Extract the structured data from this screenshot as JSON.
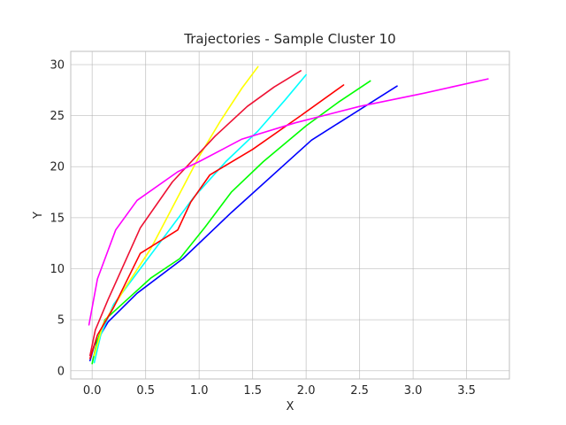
{
  "chart_data": {
    "type": "line",
    "title": "Trajectories - Sample Cluster 10",
    "xlabel": "X",
    "ylabel": "Y",
    "xlim": [
      -0.2,
      3.9
    ],
    "ylim": [
      -0.8,
      31.3
    ],
    "xticks": [
      0.0,
      0.5,
      1.0,
      1.5,
      2.0,
      2.5,
      3.0,
      3.5
    ],
    "xtick_labels": [
      "0.0",
      "0.5",
      "1.0",
      "1.5",
      "2.0",
      "2.5",
      "3.0",
      "3.5"
    ],
    "yticks": [
      0,
      5,
      10,
      15,
      20,
      25,
      30
    ],
    "ytick_labels": [
      "0",
      "5",
      "10",
      "15",
      "20",
      "25",
      "30"
    ],
    "grid": true,
    "legend": false,
    "series": [
      {
        "color": "#0000ff",
        "x": [
          -0.02,
          0.02,
          0.15,
          0.42,
          0.85,
          1.3,
          2.05,
          2.85
        ],
        "y": [
          1.0,
          2.5,
          4.8,
          7.6,
          11.0,
          15.5,
          22.6,
          27.9
        ]
      },
      {
        "color": "#00ff00",
        "x": [
          0.0,
          0.05,
          0.12,
          0.35,
          0.55,
          0.82,
          1.05,
          1.3,
          1.6,
          2.0,
          2.3,
          2.6
        ],
        "y": [
          0.7,
          3.0,
          5.0,
          7.2,
          9.1,
          11.0,
          14.0,
          17.5,
          20.5,
          24.0,
          26.3,
          28.4
        ]
      },
      {
        "color": "#00ffff",
        "x": [
          0.02,
          0.08,
          0.2,
          0.45,
          0.7,
          0.95,
          1.25,
          1.55,
          1.8,
          2.0
        ],
        "y": [
          0.8,
          3.5,
          6.5,
          10.0,
          13.5,
          17.0,
          20.5,
          23.5,
          26.5,
          29.0
        ]
      },
      {
        "color": "#ffff00",
        "x": [
          0.02,
          0.1,
          0.3,
          0.55,
          0.8,
          1.0,
          1.2,
          1.4,
          1.55
        ],
        "y": [
          1.5,
          4.5,
          8.0,
          12.0,
          17.0,
          21.0,
          24.5,
          27.7,
          29.8
        ]
      },
      {
        "color": "#ff0000",
        "x": [
          -0.02,
          0.05,
          0.2,
          0.45,
          0.8,
          0.92,
          1.1,
          1.5,
          1.95,
          2.35
        ],
        "y": [
          1.2,
          3.5,
          6.2,
          11.5,
          13.8,
          16.5,
          19.2,
          21.7,
          25.0,
          28.0
        ]
      },
      {
        "color": "#ee1133",
        "x": [
          -0.02,
          0.03,
          0.15,
          0.45,
          0.75,
          1.15,
          1.45,
          1.7,
          1.95
        ],
        "y": [
          1.5,
          4.0,
          7.0,
          14.0,
          18.5,
          23.0,
          25.9,
          27.8,
          29.4
        ]
      },
      {
        "color": "#ff00ff",
        "x": [
          -0.03,
          0.05,
          0.22,
          0.42,
          0.8,
          1.0,
          1.4,
          1.9,
          2.5,
          3.1,
          3.7
        ],
        "y": [
          4.5,
          9.0,
          13.8,
          16.7,
          19.5,
          20.5,
          22.7,
          24.3,
          25.9,
          27.2,
          28.6
        ]
      }
    ]
  }
}
